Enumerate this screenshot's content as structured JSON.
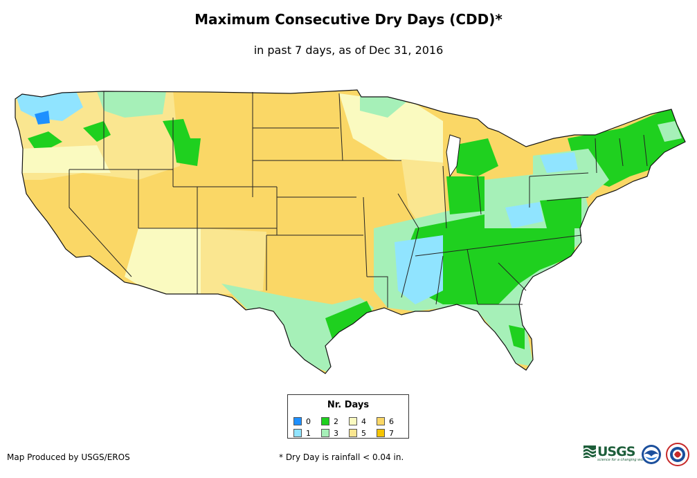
{
  "title": "Maximum Consecutive Dry Days (CDD)*",
  "subtitle": "in past 7 days, as of Dec 31, 2016",
  "legend": {
    "title": "Nr. Days",
    "items": [
      {
        "label": "0",
        "color": "#1e90ff"
      },
      {
        "label": "2",
        "color": "#1fd01f"
      },
      {
        "label": "4",
        "color": "#fafac0"
      },
      {
        "label": "6",
        "color": "#fad766"
      },
      {
        "label": "1",
        "color": "#90e4ff"
      },
      {
        "label": "3",
        "color": "#a6f0b8"
      },
      {
        "label": "5",
        "color": "#fae690"
      },
      {
        "label": "7",
        "color": "#f5c400"
      }
    ]
  },
  "footer": {
    "producer": "Map Produced by USGS/EROS",
    "note": "* Dry Day is rainfall < 0.04 in."
  },
  "logos": {
    "usgs_text": "USGS",
    "usgs_tagline": "science for a changing world"
  }
}
